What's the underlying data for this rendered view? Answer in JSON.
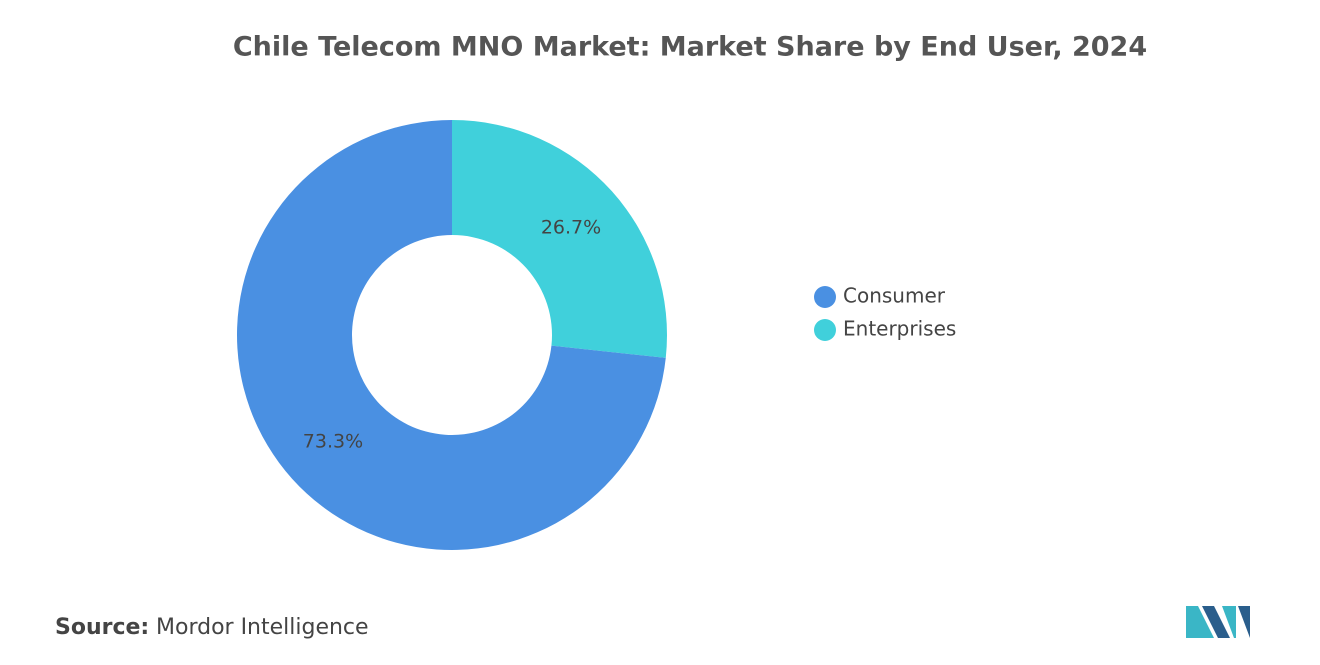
{
  "chart_data": {
    "type": "donut",
    "title": "Chile Telecom MNO Market: Market Share by End User, 2024",
    "categories": [
      "Consumer",
      "Enterprises"
    ],
    "values": [
      73.3,
      26.7
    ],
    "value_labels": [
      "73.3%",
      "26.7%"
    ],
    "colors": [
      "#4a90e2",
      "#40d0db"
    ],
    "legend": "right",
    "source_label": "Source:",
    "source": "Mordor Intelligence"
  }
}
